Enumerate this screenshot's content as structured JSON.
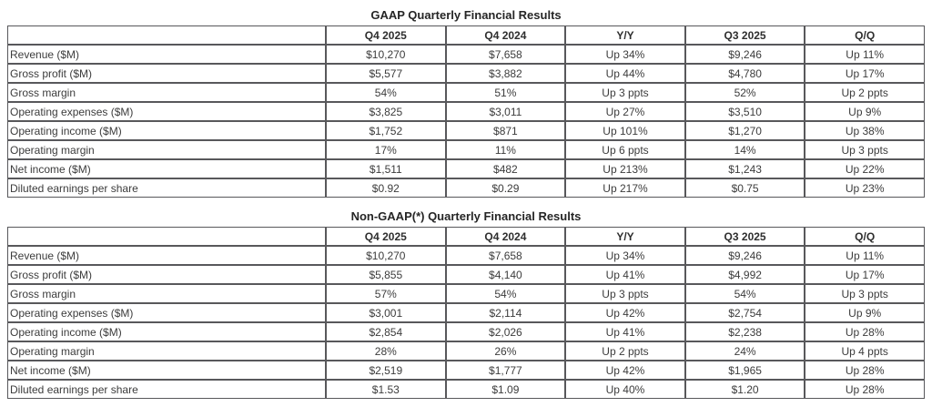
{
  "colors": {
    "background": "#ffffff",
    "table_border": "#58585b",
    "cell_text": "#3c3c3c",
    "title_text": "#252525"
  },
  "chart_data": [
    {
      "type": "table",
      "title": "GAAP Quarterly Financial Results",
      "columns": [
        "",
        "Q4 2025",
        "Q4 2024",
        "Y/Y",
        "Q3 2025",
        "Q/Q"
      ],
      "rows": [
        [
          "Revenue ($M)",
          "$10,270",
          "$7,658",
          "Up 34%",
          "$9,246",
          "Up 11%"
        ],
        [
          "Gross profit ($M)",
          "$5,577",
          "$3,882",
          "Up 44%",
          "$4,780",
          "Up 17%"
        ],
        [
          "Gross margin",
          "54%",
          "51%",
          "Up 3 ppts",
          "52%",
          "Up 2 ppts"
        ],
        [
          "Operating expenses ($M)",
          "$3,825",
          "$3,011",
          "Up 27%",
          "$3,510",
          "Up 9%"
        ],
        [
          "Operating income ($M)",
          "$1,752",
          "$871",
          "Up 101%",
          "$1,270",
          "Up 38%"
        ],
        [
          "Operating margin",
          "17%",
          "11%",
          "Up 6 ppts",
          "14%",
          "Up 3 ppts"
        ],
        [
          "Net income ($M)",
          "$1,511",
          "$482",
          "Up 213%",
          "$1,243",
          "Up 22%"
        ],
        [
          "Diluted earnings per share",
          "$0.92",
          "$0.29",
          "Up 217%",
          "$0.75",
          "Up 23%"
        ]
      ]
    },
    {
      "type": "table",
      "title": "Non-GAAP(*) Quarterly Financial Results",
      "columns": [
        "",
        "Q4 2025",
        "Q4 2024",
        "Y/Y",
        "Q3 2025",
        "Q/Q"
      ],
      "rows": [
        [
          "Revenue ($M)",
          "$10,270",
          "$7,658",
          "Up 34%",
          "$9,246",
          "Up 11%"
        ],
        [
          "Gross profit ($M)",
          "$5,855",
          "$4,140",
          "Up 41%",
          "$4,992",
          "Up 17%"
        ],
        [
          "Gross margin",
          "57%",
          "54%",
          "Up 3 ppts",
          "54%",
          "Up 3 ppts"
        ],
        [
          "Operating expenses ($M)",
          "$3,001",
          "$2,114",
          "Up 42%",
          "$2,754",
          "Up 9%"
        ],
        [
          "Operating income ($M)",
          "$2,854",
          "$2,026",
          "Up 41%",
          "$2,238",
          "Up 28%"
        ],
        [
          "Operating margin",
          "28%",
          "26%",
          "Up 2 ppts",
          "24%",
          "Up 4 ppts"
        ],
        [
          "Net income ($M)",
          "$2,519",
          "$1,777",
          "Up 42%",
          "$1,965",
          "Up 28%"
        ],
        [
          "Diluted earnings per share",
          "$1.53",
          "$1.09",
          "Up 40%",
          "$1.20",
          "Up 28%"
        ]
      ]
    }
  ]
}
